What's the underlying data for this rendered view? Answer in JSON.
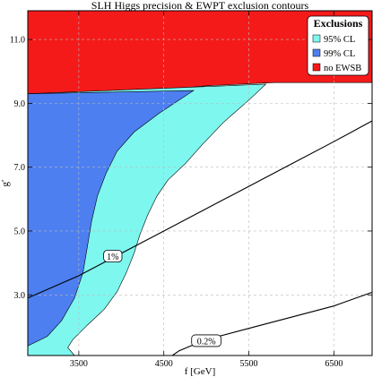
{
  "chart_data": {
    "type": "area",
    "title": "SLH Higgs precision & EWPT exclusion contours",
    "xlabel": "f [GeV]",
    "ylabel": "g′",
    "xlim": [
      2900,
      6950
    ],
    "ylim": [
      1.1,
      11.9
    ],
    "xticks": [
      3500,
      4500,
      5500,
      6500
    ],
    "yticks": [
      3.0,
      5.0,
      7.0,
      9.0,
      11.0
    ],
    "grid": true,
    "legend": {
      "title": "Exclusions",
      "placement": "top-right",
      "entries": [
        "95% CL",
        "99% CL",
        "no EWSB"
      ]
    },
    "colors": {
      "cl95": "#7ef7ef",
      "cl99": "#4d7ff0",
      "no_ewsb": "#f51a1a",
      "grid": "#bbbbbb"
    },
    "regions": [
      {
        "name": "no EWSB",
        "points": [
          [
            2900,
            11.9
          ],
          [
            6950,
            11.9
          ],
          [
            6950,
            9.65
          ],
          [
            5800,
            9.65
          ],
          [
            5000,
            9.55
          ],
          [
            4600,
            9.45
          ],
          [
            4200,
            9.35
          ],
          [
            3700,
            9.3
          ],
          [
            2900,
            9.3
          ]
        ]
      },
      {
        "name": "95% CL",
        "points": [
          [
            2900,
            9.3
          ],
          [
            5700,
            9.6
          ],
          [
            5500,
            9.1
          ],
          [
            5200,
            8.4
          ],
          [
            4950,
            7.7
          ],
          [
            4750,
            7.1
          ],
          [
            4550,
            6.6
          ],
          [
            4420,
            6.1
          ],
          [
            4310,
            5.5
          ],
          [
            4220,
            4.9
          ],
          [
            4150,
            4.3
          ],
          [
            4060,
            3.7
          ],
          [
            3950,
            3.1
          ],
          [
            3800,
            2.55
          ],
          [
            3600,
            2.05
          ],
          [
            3430,
            1.6
          ],
          [
            3370,
            1.35
          ],
          [
            3450,
            1.1
          ],
          [
            2900,
            1.1
          ]
        ]
      },
      {
        "name": "99% CL",
        "points": [
          [
            2900,
            9.3
          ],
          [
            4850,
            9.4
          ],
          [
            4450,
            8.7
          ],
          [
            4150,
            8.1
          ],
          [
            3950,
            7.5
          ],
          [
            3820,
            6.8
          ],
          [
            3720,
            6.1
          ],
          [
            3650,
            5.3
          ],
          [
            3600,
            4.5
          ],
          [
            3550,
            3.7
          ],
          [
            3450,
            2.9
          ],
          [
            3300,
            2.2
          ],
          [
            3130,
            1.7
          ],
          [
            2900,
            1.4
          ]
        ]
      }
    ],
    "contours": [
      {
        "label": "1%",
        "points": [
          [
            2900,
            2.9
          ],
          [
            3500,
            3.6
          ],
          [
            4000,
            4.3
          ],
          [
            4500,
            5.0
          ],
          [
            5000,
            5.7
          ],
          [
            5500,
            6.4
          ],
          [
            6000,
            7.1
          ],
          [
            6500,
            7.8
          ],
          [
            6950,
            8.45
          ]
        ],
        "label_at": [
          3900,
          4.2
        ]
      },
      {
        "label": "0.2%",
        "points": [
          [
            4600,
            1.1
          ],
          [
            4680,
            1.25
          ],
          [
            4800,
            1.38
          ],
          [
            5000,
            1.6
          ],
          [
            5500,
            1.95
          ],
          [
            6000,
            2.3
          ],
          [
            6500,
            2.65
          ],
          [
            6950,
            3.08
          ]
        ],
        "label_at": [
          5000,
          1.55
        ]
      }
    ]
  }
}
